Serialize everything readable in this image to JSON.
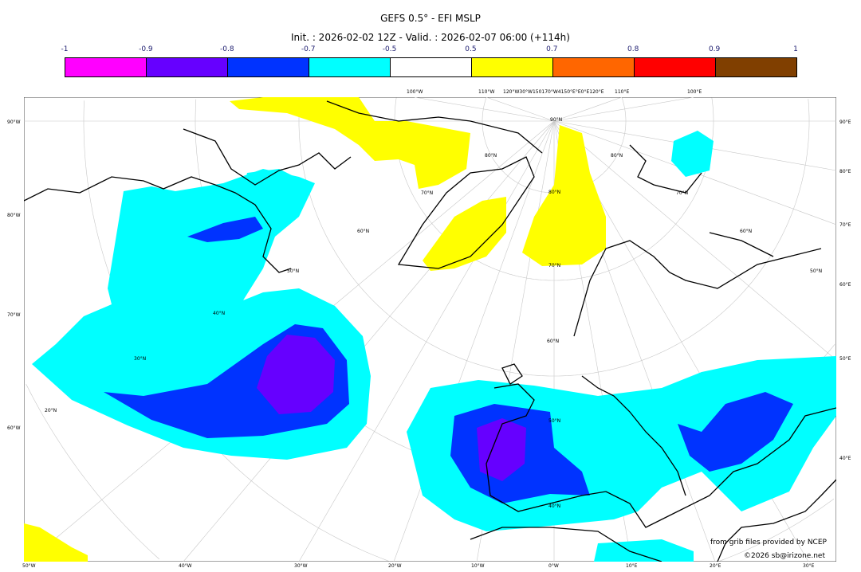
{
  "title": "GEFS 0.5° - EFI MSLP",
  "subtitle": "Init. : 2026-02-02 12Z - Valid. : 2026-02-07 06:00 (+114h)",
  "colorbar": {
    "ticks": [
      "-1",
      "-0.9",
      "-0.8",
      "-0.7",
      "-0.5",
      "0.5",
      "0.7",
      "0.8",
      "0.9",
      "1"
    ],
    "colors": [
      "#ff00ff",
      "#6600ff",
      "#0033ff",
      "#00ffff",
      "#ffffff",
      "#ffff00",
      "#ff6600",
      "#ff0000",
      "#803f00"
    ]
  },
  "axes": {
    "left": [
      "90°W",
      "80°W",
      "70°W",
      "60°W"
    ],
    "right": [
      "90°E",
      "80°E",
      "70°E",
      "60°E",
      "50°E",
      "40°E"
    ],
    "bottom": [
      "50°W",
      "40°W",
      "30°W",
      "20°W",
      "10°W",
      "0°W",
      "10°E",
      "20°E",
      "30°E"
    ],
    "top": [
      "100°W",
      "110°W",
      "120°W30°W150170°W4150°E°E0°E120°E",
      "110°E",
      "100°E"
    ]
  },
  "grid_labels": [
    "90°N",
    "80°N",
    "70°N",
    "60°N",
    "50°N",
    "40°N",
    "30°N",
    "20°N",
    "60°N",
    "70°N",
    "80°N",
    "50°N",
    "40°N",
    "60°N",
    "50°N",
    "70°N",
    "80°N",
    "60°N",
    "50°N"
  ],
  "credits": {
    "source": "from grib files provided by NCEP",
    "copyright": "©2026 sb@irizone.net"
  }
}
